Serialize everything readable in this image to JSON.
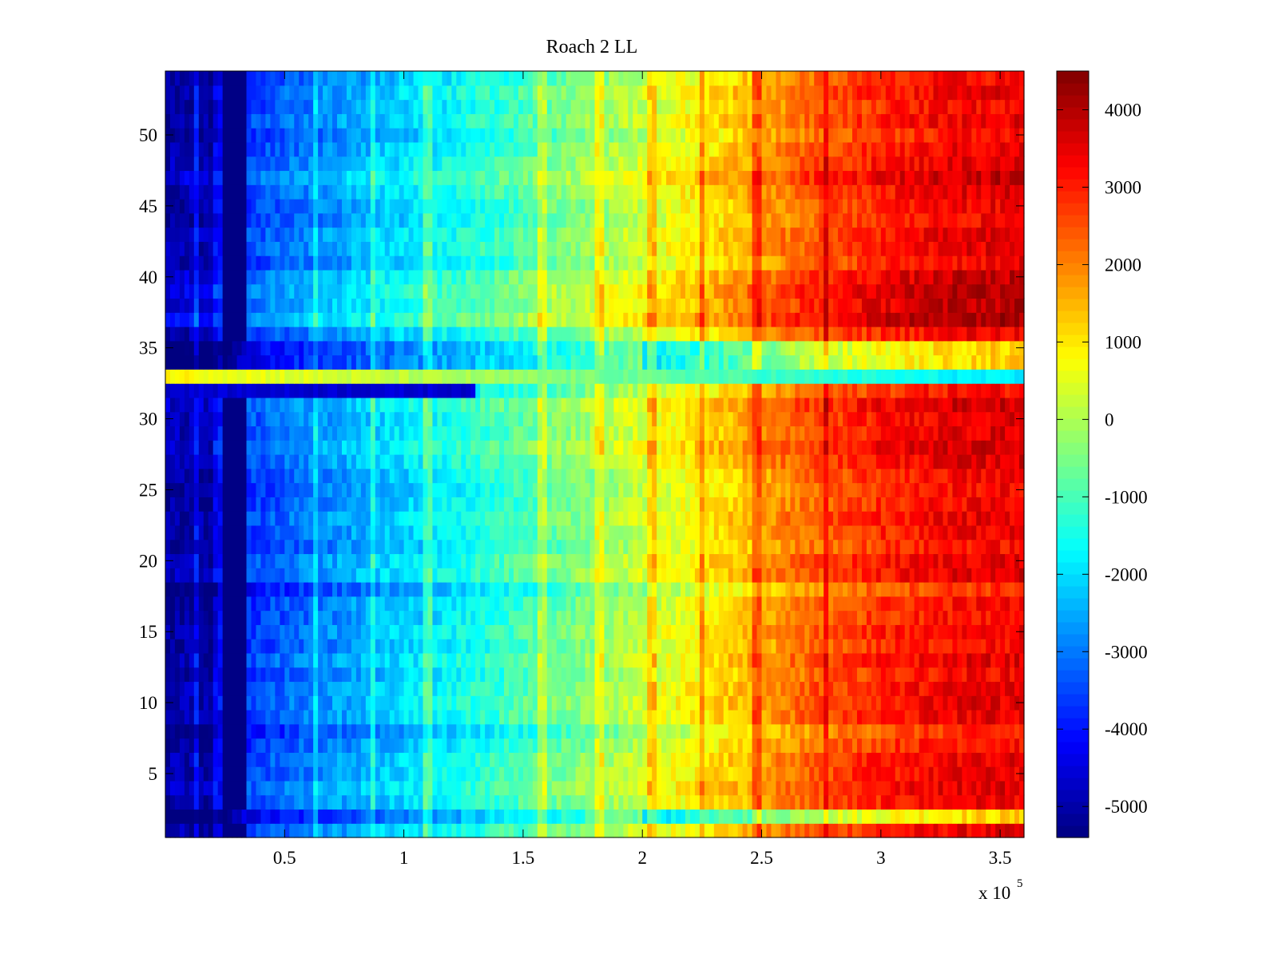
{
  "chart_data": {
    "type": "heatmap",
    "title": "Roach 2 LL",
    "xlabel": "",
    "ylabel": "",
    "x_multiplier_label": "x 10",
    "x_multiplier_exponent": "5",
    "xlim": [
      0,
      3.6
    ],
    "ylim": [
      0.5,
      54.5
    ],
    "xticks": [
      0.5,
      1,
      1.5,
      2,
      2.5,
      3,
      3.5
    ],
    "xtick_labels": [
      "0.5",
      "1",
      "1.5",
      "2",
      "2.5",
      "3",
      "3.5"
    ],
    "yticks": [
      5,
      10,
      15,
      20,
      25,
      30,
      35,
      40,
      45,
      50
    ],
    "ytick_labels": [
      "5",
      "10",
      "15",
      "20",
      "25",
      "30",
      "35",
      "40",
      "45",
      "50"
    ],
    "rows": 54,
    "columns": 180,
    "colormap": "jet",
    "clim": [
      -5400,
      4500
    ],
    "colorbar_ticks": [
      -5000,
      -4000,
      -3000,
      -2000,
      -1000,
      0,
      1000,
      2000,
      3000,
      4000
    ],
    "colorbar_tick_labels": [
      "-5000",
      "-4000",
      "-3000",
      "-2000",
      "-1000",
      "0",
      "1000",
      "2000",
      "3000",
      "4000"
    ],
    "value_profile": {
      "description": "approximate column-wise value trend (x in units of 10^5)",
      "x": [
        0,
        0.12,
        0.22,
        0.35,
        0.6,
        0.9,
        1.2,
        1.5,
        1.8,
        2.1,
        2.4,
        2.7,
        3.0,
        3.3,
        3.6
      ],
      "values": [
        -5100,
        -5000,
        -5300,
        -3600,
        -3000,
        -2300,
        -1700,
        -1000,
        -300,
        500,
        1300,
        2300,
        2900,
        3300,
        3400
      ]
    },
    "dark_band_x": [
      0.24,
      0.35
    ],
    "vertical_streaks_x": [
      0.13,
      0.22,
      0.63,
      0.87,
      1.1,
      1.58,
      1.82,
      2.04,
      2.25,
      2.48,
      2.77
    ],
    "row_features": [
      {
        "row": 33,
        "label": "inverted row (warm at low x, cool at high x)"
      },
      {
        "row": 32,
        "label": "dark blue segment up to x≈1.3"
      },
      {
        "row": 35,
        "label": "light cyan/green stripe"
      },
      {
        "row": 34,
        "label": "light cyan/green stripe"
      },
      {
        "row": 2,
        "label": "light cyan/green stripe"
      },
      {
        "row": 38,
        "label": "hottest row at high x"
      },
      {
        "row": 39,
        "label": "hottest row at high x"
      }
    ]
  }
}
